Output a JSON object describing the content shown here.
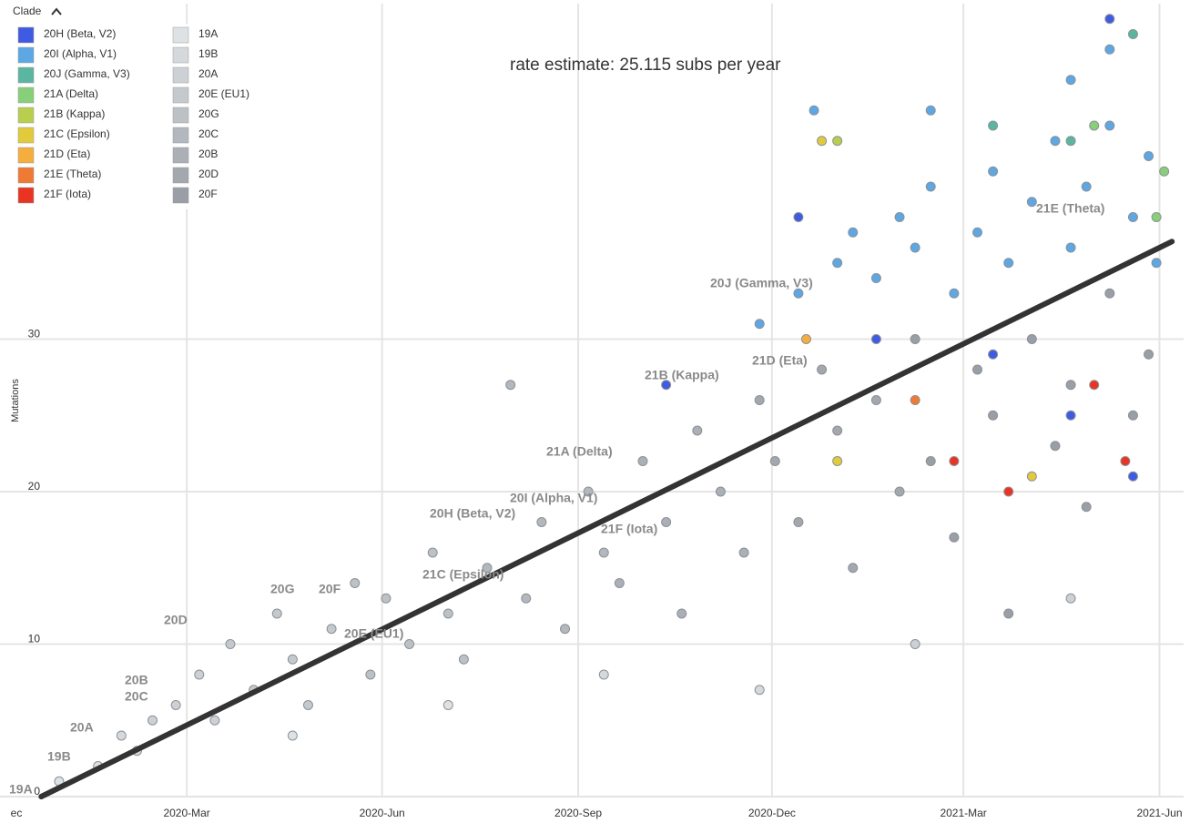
{
  "chart_data": {
    "type": "scatter",
    "annotation": "rate estimate: 25.115 subs per year",
    "y_label": "Mutations",
    "legend_title": "Clade",
    "xlim": [
      2019.924,
      2021.445
    ],
    "ylim": [
      0,
      52
    ],
    "xticks": [
      {
        "value": 2019.915,
        "label": "ec"
      },
      {
        "value": 2020.164,
        "label": "2020-Mar"
      },
      {
        "value": 2020.415,
        "label": "2020-Jun"
      },
      {
        "value": 2020.667,
        "label": "2020-Sep"
      },
      {
        "value": 2020.916,
        "label": "2020-Dec"
      },
      {
        "value": 2021.162,
        "label": "2021-Mar"
      },
      {
        "value": 2021.414,
        "label": "2021-Jun"
      }
    ],
    "yticks": [
      0,
      10,
      20,
      30
    ],
    "grid": true,
    "regression_line": {
      "x": [
        2019.977,
        2021.43
      ],
      "values": [
        0,
        36.4
      ]
    },
    "clade_labels": [
      "19A",
      "19B",
      "20A",
      "20B",
      "20C",
      "20D",
      "20E (EU1)",
      "20F",
      "20G",
      "20H (Beta, V2)",
      "20I (Alpha, V1)",
      "20J (Gamma, V3)",
      "21A (Delta)",
      "21B (Kappa)",
      "21C (Epsilon)",
      "21D (Eta)",
      "21E (Theta)",
      "21F (Iota)"
    ],
    "series": [
      {
        "name": "20H (Beta, V2)",
        "color": "#3f5be2",
        "x": [
          2020.78,
          2020.95,
          2021.05,
          2021.2,
          2021.3,
          2021.38,
          2021.35
        ],
        "values": [
          27,
          38,
          30,
          29,
          25,
          21,
          51
        ]
      },
      {
        "name": "20I (Alpha, V1)",
        "color": "#5ca7e4",
        "x": [
          2020.9,
          2020.95,
          2021.0,
          2021.02,
          2021.05,
          2021.08,
          2021.1,
          2021.12,
          2021.15,
          2021.18,
          2021.2,
          2021.22,
          2021.25,
          2021.28,
          2021.3,
          2021.32,
          2021.35,
          2021.38,
          2021.4,
          2021.41,
          2021.12,
          2021.3,
          2021.35,
          2020.97
        ],
        "values": [
          31,
          33,
          35,
          37,
          34,
          38,
          36,
          40,
          33,
          37,
          41,
          35,
          39,
          43,
          36,
          40,
          44,
          38,
          42,
          35,
          45,
          47,
          49,
          45
        ]
      },
      {
        "name": "20J (Gamma, V3)",
        "color": "#5ab6a0",
        "x": [
          2021.2,
          2021.3,
          2021.38
        ],
        "values": [
          44,
          43,
          50
        ]
      },
      {
        "name": "21A (Delta)",
        "color": "#88cf7a",
        "x": [
          2021.33,
          2021.41,
          2021.42
        ],
        "values": [
          44,
          38,
          41
        ]
      },
      {
        "name": "21B (Kappa)",
        "color": "#b8cf4e",
        "x": [
          2021.0
        ],
        "values": [
          43
        ]
      },
      {
        "name": "21C (Epsilon)",
        "color": "#e1cb3c",
        "x": [
          2021.0,
          2021.25,
          2020.98
        ],
        "values": [
          22,
          21,
          43
        ]
      },
      {
        "name": "21D (Eta)",
        "color": "#f5ae3d",
        "x": [
          2020.96
        ],
        "values": [
          30
        ]
      },
      {
        "name": "21E (Theta)",
        "color": "#ef7a33",
        "x": [
          2021.1
        ],
        "values": [
          26
        ]
      },
      {
        "name": "21F (Iota)",
        "color": "#e93424",
        "x": [
          2021.15,
          2021.33,
          2021.37,
          2021.22
        ],
        "values": [
          22,
          27,
          22,
          20
        ]
      },
      {
        "name": "19A",
        "color": "#dde2e5",
        "x": [
          2020.0,
          2020.05,
          2020.3,
          2020.5
        ],
        "values": [
          1,
          2,
          4,
          6
        ]
      },
      {
        "name": "19B",
        "color": "#d5d9dc",
        "x": [
          2020.08,
          2020.1,
          2020.7,
          2020.9
        ],
        "values": [
          4,
          3,
          8,
          7
        ]
      },
      {
        "name": "20A",
        "color": "#cdd1d5",
        "x": [
          2020.12,
          2020.15,
          2020.18,
          2020.2,
          2021.1,
          2021.3
        ],
        "values": [
          5,
          6,
          8,
          5,
          10,
          13
        ]
      },
      {
        "name": "20E (EU1)",
        "color": "#c4c9ce",
        "x": [
          2020.22,
          2020.25,
          2020.28,
          2020.3,
          2020.32,
          2020.35
        ],
        "values": [
          10,
          7,
          12,
          9,
          6,
          11
        ]
      },
      {
        "name": "20G",
        "color": "#bcc1c6",
        "x": [
          2020.38,
          2020.4,
          2020.42,
          2020.45,
          2020.48,
          2020.5,
          2020.52
        ],
        "values": [
          14,
          8,
          13,
          10,
          16,
          12,
          9
        ]
      },
      {
        "name": "20C",
        "color": "#b3b8be",
        "x": [
          2020.55,
          2020.58,
          2020.6,
          2020.62,
          2020.65,
          2020.68,
          2020.7
        ],
        "values": [
          15,
          27,
          13,
          18,
          11,
          20,
          16
        ]
      },
      {
        "name": "20B",
        "color": "#abafb6",
        "x": [
          2020.72,
          2020.75,
          2020.78,
          2020.8,
          2020.82,
          2020.85,
          2020.88
        ],
        "values": [
          14,
          22,
          18,
          12,
          24,
          20,
          16
        ]
      },
      {
        "name": "20D",
        "color": "#a3a7ae",
        "x": [
          2020.9,
          2020.92,
          2020.95,
          2020.98,
          2021.0,
          2021.02,
          2021.05,
          2021.08
        ],
        "values": [
          26,
          22,
          18,
          28,
          24,
          15,
          26,
          20
        ]
      },
      {
        "name": "20F",
        "color": "#9a9ea6",
        "x": [
          2021.1,
          2021.12,
          2021.15,
          2021.18,
          2021.2,
          2021.22,
          2021.25,
          2021.28,
          2021.3,
          2021.32,
          2021.35,
          2021.38,
          2021.4
        ],
        "values": [
          30,
          22,
          17,
          28,
          25,
          12,
          30,
          23,
          27,
          19,
          33,
          25,
          29
        ]
      }
    ]
  }
}
